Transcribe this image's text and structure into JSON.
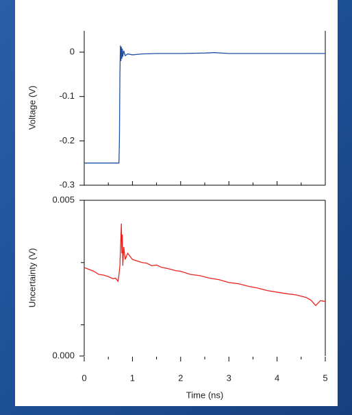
{
  "chart_data": [
    {
      "type": "line",
      "ylabel": "Voltage (V)",
      "ylim": [
        -0.3,
        0.048
      ],
      "yticks": [
        0,
        -0.1,
        -0.2,
        -0.3
      ],
      "xlim": [
        0,
        5
      ],
      "series": [
        {
          "color": "#1f4fa3",
          "x": [
            0,
            0.72,
            0.73,
            0.74,
            0.75,
            0.76,
            0.77,
            0.78,
            0.79,
            0.8,
            0.82,
            0.85,
            0.9,
            1.0,
            1.2,
            1.5,
            2.0,
            2.5,
            2.7,
            3.0,
            4.0,
            5.0
          ],
          "values": [
            -0.25,
            -0.25,
            -0.2,
            -0.05,
            0.015,
            -0.02,
            0.012,
            -0.015,
            0.008,
            -0.01,
            0.003,
            -0.008,
            -0.004,
            -0.006,
            -0.004,
            -0.003,
            -0.003,
            -0.002,
            -0.001,
            -0.003,
            -0.003,
            -0.003
          ]
        }
      ]
    },
    {
      "type": "line",
      "ylabel": "Uncertainty (V)",
      "xlabel": "Time (ns)",
      "ylim": [
        0,
        0.005
      ],
      "yticks": [
        {
          "value": 0,
          "label": "0.000"
        },
        {
          "value": 0.005,
          "label": "0.005"
        }
      ],
      "yminor_ticks": [
        0.001,
        0.003
      ],
      "xlim": [
        0,
        5
      ],
      "xticks": [
        0,
        1,
        2,
        3,
        4,
        5
      ],
      "xminor_ticks": [
        0.5,
        1.5,
        2.5,
        3.5,
        4.5
      ],
      "series": [
        {
          "color": "#e8241c",
          "x": [
            0,
            0.1,
            0.2,
            0.3,
            0.4,
            0.5,
            0.6,
            0.65,
            0.7,
            0.72,
            0.74,
            0.75,
            0.76,
            0.77,
            0.78,
            0.79,
            0.8,
            0.82,
            0.85,
            0.9,
            1.0,
            1.1,
            1.2,
            1.3,
            1.4,
            1.5,
            1.6,
            1.7,
            1.8,
            1.9,
            2.0,
            2.2,
            2.4,
            2.6,
            2.8,
            3.0,
            3.2,
            3.4,
            3.6,
            3.8,
            4.0,
            4.2,
            4.4,
            4.6,
            4.7,
            4.8,
            4.9,
            5.0
          ],
          "values": [
            0.00284,
            0.00278,
            0.00272,
            0.00262,
            0.0026,
            0.00255,
            0.00248,
            0.0025,
            0.0024,
            0.0026,
            0.0029,
            0.0034,
            0.0038,
            0.00425,
            0.0033,
            0.0039,
            0.0029,
            0.0035,
            0.0031,
            0.0033,
            0.0031,
            0.00305,
            0.003,
            0.00298,
            0.0029,
            0.00292,
            0.00285,
            0.00282,
            0.00278,
            0.00274,
            0.00272,
            0.00262,
            0.00258,
            0.0025,
            0.00245,
            0.00236,
            0.00232,
            0.00224,
            0.00218,
            0.0021,
            0.00205,
            0.002,
            0.00196,
            0.00188,
            0.0018,
            0.00162,
            0.00178,
            0.00175
          ]
        }
      ]
    }
  ]
}
